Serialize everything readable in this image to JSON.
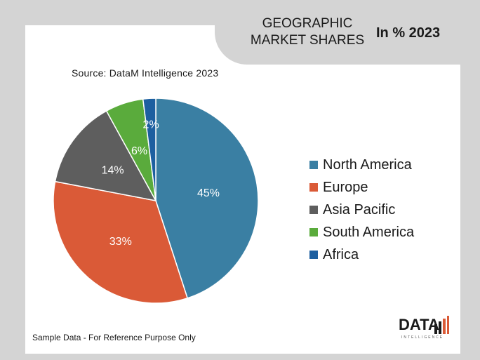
{
  "header": {
    "title_line1": "GEOGRAPHIC",
    "title_line2": "MARKET SHARES",
    "subtitle": "In % 2023"
  },
  "source": "Source: DataM Intelligence 2023",
  "footnote": "Sample Data - For Reference Purpose Only",
  "logo": {
    "text": "DATA",
    "sub": "INTELLIGENCE"
  },
  "chart_data": {
    "type": "pie",
    "categories": [
      "North America",
      "Europe",
      "Asia Pacific",
      "South America",
      "Africa"
    ],
    "values": [
      45,
      33,
      14,
      6,
      2
    ],
    "labels": [
      "45%",
      "33%",
      "14%",
      "6%",
      "2%"
    ],
    "colors": [
      "#3a7fa3",
      "#da5a37",
      "#5e5e5e",
      "#5aab3c",
      "#1d5fa0"
    ],
    "legend_position": "right"
  }
}
